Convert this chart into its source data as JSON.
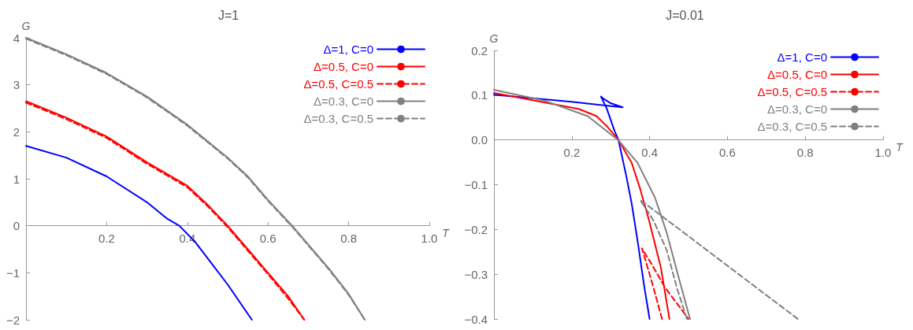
{
  "chart_data": [
    {
      "type": "line",
      "title": "J=1",
      "xlabel": "T",
      "ylabel": "G",
      "xlim": [
        0,
        1
      ],
      "ylim": [
        -2,
        4
      ],
      "xticks": [
        0.2,
        0.4,
        0.6,
        0.8,
        {
          "value": 1,
          "label": "1.0"
        }
      ],
      "yticks": [
        {
          "value": -2,
          "label": "−2"
        },
        {
          "value": -1,
          "label": "−1"
        },
        0,
        1,
        2,
        3,
        4
      ],
      "legend": "top right",
      "marker": "none",
      "series": [
        {
          "name": "Δ=1, C=0",
          "color": "#0000ff",
          "line_style": "solid",
          "x": [
            0,
            0.1,
            0.2,
            0.3,
            0.35,
            0.38,
            0.42,
            0.46,
            0.5,
            0.56
          ],
          "values": [
            1.7,
            1.45,
            1.05,
            0.5,
            0.15,
            0,
            -0.35,
            -0.8,
            -1.25,
            -2
          ]
        },
        {
          "name": "Δ=0.5, C=0",
          "color": "#ff0000",
          "line_style": "solid",
          "x": [
            0,
            0.1,
            0.2,
            0.3,
            0.4,
            0.45,
            0.5,
            0.55,
            0.6,
            0.65,
            0.69
          ],
          "values": [
            2.65,
            2.3,
            1.9,
            1.35,
            0.85,
            0.45,
            0,
            -0.5,
            -1.0,
            -1.5,
            -2
          ]
        },
        {
          "name": "Δ=0.5, C=0.5",
          "color": "#ff0000",
          "line_style": "dashed",
          "x": [
            0,
            0.1,
            0.2,
            0.3,
            0.4,
            0.45,
            0.5,
            0.55,
            0.6,
            0.65,
            0.69
          ],
          "values": [
            2.62,
            2.27,
            1.87,
            1.32,
            0.82,
            0.42,
            -0.03,
            -0.53,
            -1.03,
            -1.55,
            -2
          ]
        },
        {
          "name": "Δ=0.3, C=0",
          "color": "#808080",
          "line_style": "solid",
          "x": [
            0,
            0.1,
            0.2,
            0.3,
            0.4,
            0.5,
            0.55,
            0.6,
            0.66,
            0.7,
            0.75,
            0.8,
            0.84
          ],
          "values": [
            4,
            3.65,
            3.25,
            2.75,
            2.15,
            1.45,
            1.05,
            0.55,
            0,
            -0.4,
            -0.9,
            -1.45,
            -2
          ]
        },
        {
          "name": "Δ=0.3, C=0.5",
          "color": "#808080",
          "line_style": "dashed",
          "x": [
            0,
            0.1,
            0.2,
            0.3,
            0.4,
            0.5,
            0.55,
            0.6,
            0.66,
            0.7,
            0.75,
            0.8,
            0.84
          ],
          "values": [
            3.98,
            3.63,
            3.23,
            2.73,
            2.13,
            1.43,
            1.03,
            0.53,
            -0.02,
            -0.42,
            -0.92,
            -1.47,
            -2
          ]
        }
      ]
    },
    {
      "type": "line",
      "title": "J=0.01",
      "xlabel": "T",
      "ylabel": "G",
      "xlim": [
        0,
        1
      ],
      "ylim": [
        -0.4,
        0.2
      ],
      "xticks": [
        0.2,
        0.4,
        0.6,
        0.8,
        {
          "value": 1,
          "label": "1.0"
        }
      ],
      "yticks": [
        {
          "value": -0.4,
          "label": "−0.4"
        },
        {
          "value": -0.3,
          "label": "−0.3"
        },
        {
          "value": -0.2,
          "label": "−0.2"
        },
        {
          "value": -0.1,
          "label": "−0.1"
        },
        {
          "value": 0,
          "label": "0.0"
        },
        0.1,
        0.2
      ],
      "legend": "top right",
      "marker": "none",
      "series": [
        {
          "name": "Δ=1, C=0",
          "color": "#0000ff",
          "line_style": "solid",
          "x": [
            0,
            0.1,
            0.2,
            0.331,
            0.3,
            0.28,
            0.275,
            0.29,
            0.31,
            0.32,
            0.33,
            0.34,
            0.354,
            0.37,
            0.385,
            0.4
          ],
          "values": [
            0.101,
            0.093,
            0.085,
            0.073,
            0.082,
            0.093,
            0.097,
            0.07,
            0.02,
            0,
            -0.04,
            -0.08,
            -0.142,
            -0.23,
            -0.32,
            -0.4
          ]
        },
        {
          "name": "Δ=0.5, C=0",
          "color": "#ff0000",
          "line_style": "solid",
          "x": [
            0,
            0.129,
            0.219,
            0.264,
            0.294,
            0.32,
            0.354,
            0.376,
            0.399,
            0.429,
            0.451
          ],
          "values": [
            0.105,
            0.084,
            0.069,
            0.053,
            0.027,
            0,
            -0.051,
            -0.11,
            -0.181,
            -0.285,
            -0.4
          ]
        },
        {
          "name": "Δ=0.5, C=0.5",
          "color": "#ff0000",
          "line_style": "dashed",
          "x": [
            0.432,
            0.41,
            0.39,
            0.38,
            0.4,
            0.44,
            0.5
          ],
          "values": [
            -0.4,
            -0.33,
            -0.27,
            -0.242,
            -0.27,
            -0.33,
            -0.4
          ]
        },
        {
          "name": "Δ=0.3, C=0",
          "color": "#808080",
          "line_style": "solid",
          "x": [
            0,
            0.129,
            0.241,
            0.319,
            0.369,
            0.414,
            0.444,
            0.474,
            0.504
          ],
          "values": [
            0.112,
            0.088,
            0.053,
            0,
            -0.051,
            -0.129,
            -0.207,
            -0.305,
            -0.4
          ]
        },
        {
          "name": "Δ=0.3, C=0.5",
          "color": "#808080",
          "line_style": "dashed",
          "x": [
            0.496,
            0.47,
            0.444,
            0.41,
            0.376,
            0.5,
            0.6,
            0.781
          ],
          "values": [
            -0.4,
            -0.33,
            -0.246,
            -0.18,
            -0.134,
            -0.215,
            -0.281,
            -0.4
          ]
        }
      ]
    }
  ]
}
